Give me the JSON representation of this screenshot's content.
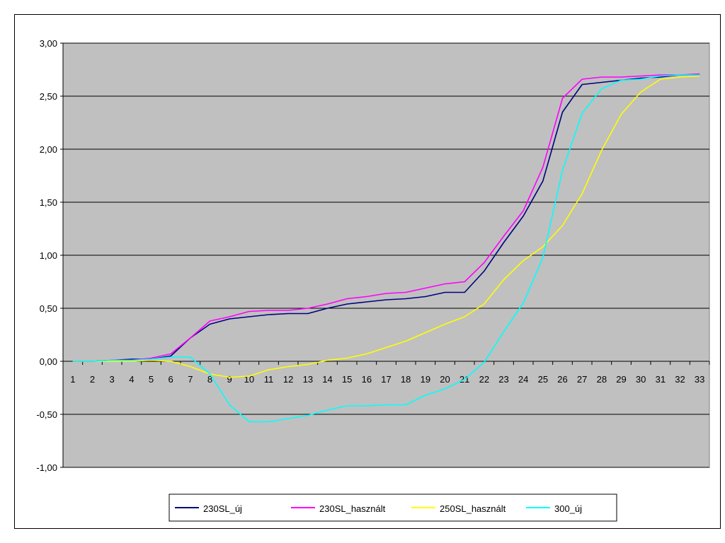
{
  "chart_data": {
    "type": "line",
    "title": "",
    "xlabel": "",
    "ylabel": "",
    "x": [
      1,
      2,
      3,
      4,
      5,
      6,
      7,
      8,
      9,
      10,
      11,
      12,
      13,
      14,
      15,
      16,
      17,
      18,
      19,
      20,
      21,
      22,
      23,
      24,
      25,
      26,
      27,
      28,
      29,
      30,
      31,
      32,
      33
    ],
    "y_ticks": [
      "3,00",
      "2,50",
      "2,00",
      "1,50",
      "1,00",
      "0,50",
      "0,00",
      "-0,50",
      "-1,00"
    ],
    "ylim": [
      -1.0,
      3.0
    ],
    "grid": true,
    "background": "#c0c0c0",
    "legend_position": "bottom",
    "series": [
      {
        "name": "230SL_új",
        "color": "#000080",
        "values": [
          0.0,
          0.0,
          0.01,
          0.02,
          0.02,
          0.05,
          0.22,
          0.35,
          0.4,
          0.42,
          0.44,
          0.45,
          0.45,
          0.5,
          0.54,
          0.56,
          0.58,
          0.59,
          0.61,
          0.65,
          0.65,
          0.85,
          1.12,
          1.37,
          1.7,
          2.35,
          2.61,
          2.63,
          2.65,
          2.67,
          2.68,
          2.7,
          2.7
        ]
      },
      {
        "name": "230SL_használt",
        "color": "#ff00ff",
        "values": [
          0.0,
          0.0,
          0.01,
          0.01,
          0.03,
          0.07,
          0.22,
          0.38,
          0.42,
          0.47,
          0.48,
          0.48,
          0.5,
          0.54,
          0.59,
          0.61,
          0.64,
          0.65,
          0.69,
          0.73,
          0.75,
          0.93,
          1.18,
          1.42,
          1.83,
          2.48,
          2.66,
          2.68,
          2.68,
          2.69,
          2.7,
          2.7,
          2.71
        ]
      },
      {
        "name": "250SL_használt",
        "color": "#ffff00",
        "values": [
          0.0,
          0.0,
          0.0,
          0.0,
          0.01,
          0.0,
          -0.05,
          -0.12,
          -0.15,
          -0.14,
          -0.08,
          -0.05,
          -0.03,
          0.01,
          0.03,
          0.07,
          0.13,
          0.19,
          0.27,
          0.35,
          0.42,
          0.54,
          0.77,
          0.95,
          1.08,
          1.28,
          1.58,
          1.99,
          2.33,
          2.54,
          2.66,
          2.68,
          2.69
        ]
      },
      {
        "name": "300_új",
        "color": "#00ffff",
        "values": [
          0.0,
          0.0,
          0.01,
          0.01,
          0.02,
          0.04,
          0.04,
          -0.12,
          -0.41,
          -0.57,
          -0.57,
          -0.54,
          -0.51,
          -0.46,
          -0.42,
          -0.42,
          -0.41,
          -0.41,
          -0.32,
          -0.26,
          -0.17,
          -0.01,
          0.28,
          0.55,
          0.98,
          1.8,
          2.34,
          2.57,
          2.65,
          2.66,
          2.69,
          2.7,
          2.7
        ]
      }
    ]
  }
}
